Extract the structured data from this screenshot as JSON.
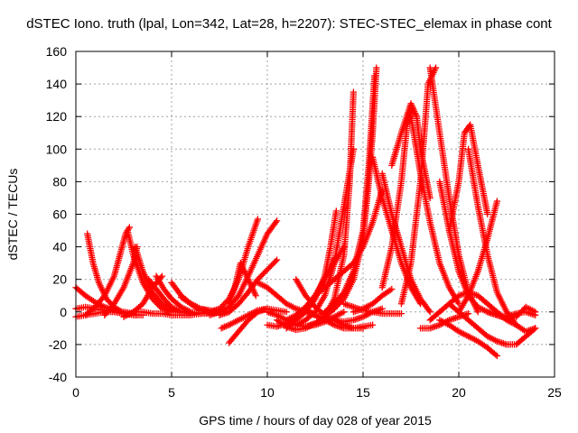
{
  "chart_data": {
    "type": "scatter",
    "title": "dSTEC Iono. truth (lpal, Lon=342, Lat=28, h=2207): STEC-STEC_elemax in phase cont",
    "xlabel": "GPS time / hours of day 028 of year 2015",
    "ylabel": "dSTEC  / TECUs",
    "xlim": [
      0,
      25
    ],
    "ylim": [
      -40,
      160
    ],
    "xticks": [
      0,
      5,
      10,
      15,
      20,
      25
    ],
    "yticks": [
      -40,
      -20,
      0,
      20,
      40,
      60,
      80,
      100,
      120,
      140,
      160
    ],
    "grid": true,
    "marker": "+",
    "color": "#ff0000",
    "series": [
      {
        "x": [
          0.0,
          0.5,
          1.0,
          1.5,
          2.0,
          2.5,
          3.0
        ],
        "y": [
          15,
          10,
          6,
          3,
          1,
          0,
          -1
        ]
      },
      {
        "x": [
          0.0,
          0.5,
          1.0,
          1.5,
          2.0,
          2.5,
          3.0
        ],
        "y": [
          -3,
          -2,
          -1,
          0,
          0,
          -1,
          -1
        ]
      },
      {
        "x": [
          0.0,
          0.5,
          1.0,
          1.5,
          2.0,
          2.5,
          3.0,
          3.5
        ],
        "y": [
          2,
          3,
          2,
          1,
          0,
          -1,
          -2,
          -2
        ]
      },
      {
        "x": [
          0.6,
          0.9,
          1.2,
          1.6,
          2.0,
          2.4,
          2.8,
          3.2
        ],
        "y": [
          48,
          30,
          18,
          8,
          3,
          0,
          -1,
          -2
        ]
      },
      {
        "x": [
          0.5,
          1.0,
          1.5,
          2.0,
          2.3,
          2.6,
          2.8
        ],
        "y": [
          -2,
          3,
          10,
          22,
          35,
          48,
          52
        ]
      },
      {
        "x": [
          2.7,
          3.0,
          3.5,
          4.0,
          4.5,
          5.0
        ],
        "y": [
          50,
          35,
          18,
          8,
          2,
          0
        ]
      },
      {
        "x": [
          1.5,
          2.0,
          2.5,
          3.0,
          3.2
        ],
        "y": [
          -2,
          5,
          15,
          30,
          40
        ]
      },
      {
        "x": [
          3.1,
          3.5,
          4.0,
          4.5,
          5.0,
          5.5,
          6.0
        ],
        "y": [
          40,
          25,
          12,
          5,
          1,
          0,
          -1
        ]
      },
      {
        "x": [
          2.5,
          3.0,
          3.5,
          4.0,
          4.5
        ],
        "y": [
          -3,
          0,
          5,
          15,
          22
        ]
      },
      {
        "x": [
          3.8,
          4.2,
          4.6,
          5.0,
          5.5,
          6.0
        ],
        "y": [
          20,
          14,
          8,
          3,
          0,
          -1
        ]
      },
      {
        "x": [
          4.2,
          4.6,
          5.0,
          5.5,
          6.0,
          6.5
        ],
        "y": [
          22,
          14,
          8,
          3,
          0,
          -1
        ]
      },
      {
        "x": [
          5.0,
          5.5,
          6.0,
          6.5,
          7.0
        ],
        "y": [
          18,
          10,
          5,
          1,
          0
        ]
      },
      {
        "x": [
          5.5,
          6.0,
          6.5,
          7.0,
          7.5
        ],
        "y": [
          9,
          5,
          2,
          0,
          0
        ]
      },
      {
        "x": [
          6.0,
          6.5,
          7.0,
          7.5,
          8.0
        ],
        "y": [
          5,
          2,
          1,
          0,
          0
        ]
      },
      {
        "x": [
          3.0,
          3.5,
          4.0,
          4.5,
          5.0,
          5.5,
          6.0,
          6.5,
          7.0,
          7.5
        ],
        "y": [
          0,
          0,
          -1,
          -1,
          -2,
          -2,
          -2,
          -1,
          -1,
          0
        ]
      },
      {
        "x": [
          6.5,
          7.0,
          7.5,
          8.0,
          8.5,
          9.0,
          9.5
        ],
        "y": [
          -1,
          0,
          2,
          8,
          20,
          40,
          57
        ]
      },
      {
        "x": [
          7.0,
          7.5,
          8.0,
          8.5,
          9.0,
          9.5,
          10.0,
          10.5
        ],
        "y": [
          -2,
          0,
          3,
          10,
          22,
          35,
          48,
          56
        ]
      },
      {
        "x": [
          7.5,
          8.0,
          8.5,
          9.0,
          9.5,
          10.0,
          10.5
        ],
        "y": [
          -2,
          0,
          5,
          12,
          20,
          26,
          32
        ]
      },
      {
        "x": [
          8.0,
          8.3,
          8.6,
          9.0,
          9.4
        ],
        "y": [
          5,
          15,
          30,
          20,
          10
        ]
      },
      {
        "x": [
          7.6,
          8.0,
          8.5,
          9.0,
          9.5,
          10.0,
          10.5,
          11.0
        ],
        "y": [
          -10,
          -8,
          -5,
          -2,
          1,
          2,
          1,
          0
        ]
      },
      {
        "x": [
          8.0,
          8.5,
          9.0,
          9.5,
          10.0
        ],
        "y": [
          -19,
          -12,
          -5,
          0,
          2
        ]
      },
      {
        "x": [
          9.5,
          10.0,
          10.5,
          11.0,
          11.5,
          12.0,
          12.5
        ],
        "y": [
          18,
          15,
          10,
          5,
          2,
          0,
          -2
        ]
      },
      {
        "x": [
          10.0,
          10.5,
          11.0,
          11.5,
          12.0,
          12.5,
          13.0,
          13.5,
          14.0
        ],
        "y": [
          0,
          -2,
          -5,
          -8,
          -9,
          -8,
          -6,
          -3,
          0
        ]
      },
      {
        "x": [
          10.5,
          11.0,
          11.5,
          12.0,
          12.5,
          13.0,
          13.5
        ],
        "y": [
          -5,
          -9,
          -11,
          -10,
          -7,
          -3,
          2
        ]
      },
      {
        "x": [
          10.0,
          10.5,
          11.0,
          11.5,
          12.0,
          12.5,
          13.0,
          13.5
        ],
        "y": [
          -8,
          -9,
          -7,
          -3,
          3,
          10,
          20,
          33
        ]
      },
      {
        "x": [
          11.0,
          11.5,
          12.0,
          12.5,
          13.0,
          13.5,
          14.0
        ],
        "y": [
          -5,
          -2,
          3,
          10,
          20,
          30,
          40
        ]
      },
      {
        "x": [
          11.0,
          11.5,
          12.0,
          12.5,
          13.0,
          13.3,
          13.6
        ],
        "y": [
          -10,
          -5,
          0,
          8,
          22,
          40,
          62
        ]
      },
      {
        "x": [
          11.5,
          12.0,
          12.5,
          13.0,
          13.5,
          14.0,
          14.5
        ],
        "y": [
          -8,
          -5,
          0,
          10,
          30,
          65,
          100
        ]
      },
      {
        "x": [
          12.0,
          12.5,
          13.0,
          13.5,
          14.0,
          14.3,
          14.5
        ],
        "y": [
          -9,
          -7,
          -3,
          8,
          35,
          80,
          135
        ]
      },
      {
        "x": [
          11.5,
          12.0,
          12.5,
          13.0,
          13.5,
          14.0,
          14.5,
          15.0
        ],
        "y": [
          20,
          10,
          3,
          -2,
          -5,
          -8,
          -10,
          -10
        ]
      },
      {
        "x": [
          12.0,
          12.5,
          13.0,
          13.5,
          14.0,
          14.5,
          15.0,
          15.5
        ],
        "y": [
          2,
          -2,
          -5,
          -8,
          -10,
          -10,
          -9,
          -8
        ]
      },
      {
        "x": [
          12.5,
          13.0,
          13.5,
          14.0,
          14.5,
          15.0,
          15.5,
          16.0
        ],
        "y": [
          -2,
          -4,
          -5,
          -6,
          -5,
          -3,
          0,
          2
        ]
      },
      {
        "x": [
          12.5,
          13.0,
          13.5,
          14.0,
          14.5,
          15.0,
          15.5,
          16.0
        ],
        "y": [
          10,
          15,
          20,
          25,
          30,
          40,
          55,
          75
        ]
      },
      {
        "x": [
          13.0,
          13.5,
          14.0,
          14.5,
          15.0,
          15.3,
          15.6
        ],
        "y": [
          0,
          5,
          12,
          25,
          50,
          90,
          145
        ]
      },
      {
        "x": [
          13.5,
          14.0,
          14.5,
          15.0,
          15.3,
          15.5,
          15.7
        ],
        "y": [
          2,
          8,
          20,
          45,
          80,
          110,
          150
        ]
      },
      {
        "x": [
          14.0,
          14.5,
          15.0,
          15.5,
          16.0,
          16.5,
          17.0
        ],
        "y": [
          5,
          3,
          1,
          0,
          -1,
          -1,
          -1
        ]
      },
      {
        "x": [
          14.5,
          15.0,
          15.5,
          16.0,
          16.5
        ],
        "y": [
          0,
          2,
          5,
          10,
          14
        ]
      },
      {
        "x": [
          15.5,
          16.0,
          16.5,
          17.0,
          17.5,
          18.0
        ],
        "y": [
          95,
          70,
          50,
          30,
          15,
          5
        ]
      },
      {
        "x": [
          16.0,
          16.5,
          17.0,
          17.5,
          18.0,
          18.5
        ],
        "y": [
          85,
          60,
          40,
          20,
          8,
          0
        ]
      },
      {
        "x": [
          16.5,
          17.0,
          17.5,
          17.8,
          18.0,
          18.5
        ],
        "y": [
          90,
          110,
          128,
          120,
          100,
          70
        ]
      },
      {
        "x": [
          16.0,
          16.5,
          17.0,
          17.3,
          17.6
        ],
        "y": [
          15,
          40,
          80,
          115,
          125
        ]
      },
      {
        "x": [
          17.5,
          18.0,
          18.5,
          19.0,
          19.5,
          20.0
        ],
        "y": [
          120,
          85,
          55,
          30,
          15,
          5
        ]
      },
      {
        "x": [
          17.0,
          17.5,
          18.0,
          18.4,
          18.8
        ],
        "y": [
          5,
          30,
          80,
          140,
          150
        ]
      },
      {
        "x": [
          18.5,
          19.0,
          19.5,
          20.0,
          20.5,
          21.0
        ],
        "y": [
          150,
          110,
          70,
          35,
          12,
          0
        ]
      },
      {
        "x": [
          18.0,
          18.5,
          19.0,
          19.5,
          20.0,
          20.5
        ],
        "y": [
          -10,
          -10,
          -8,
          -5,
          -3,
          -1
        ]
      },
      {
        "x": [
          18.5,
          19.0,
          19.5,
          20.0,
          20.5,
          21.0,
          21.5,
          22.0,
          22.5,
          23.0
        ],
        "y": [
          -5,
          0,
          5,
          10,
          12,
          10,
          5,
          0,
          -5,
          -8
        ]
      },
      {
        "x": [
          19.0,
          19.5,
          20.0,
          20.5,
          21.0,
          21.5,
          22.0
        ],
        "y": [
          80,
          50,
          25,
          10,
          3,
          0,
          -2
        ]
      },
      {
        "x": [
          19.5,
          20.0,
          20.3,
          20.6,
          21.0,
          21.5
        ],
        "y": [
          50,
          80,
          110,
          115,
          90,
          60
        ]
      },
      {
        "x": [
          20.5,
          21.0,
          21.5,
          22.0,
          22.5,
          23.0,
          23.5,
          24.0
        ],
        "y": [
          100,
          65,
          35,
          12,
          0,
          -8,
          -12,
          -10
        ]
      },
      {
        "x": [
          19.0,
          19.5,
          20.0,
          20.5,
          21.0,
          21.5,
          22.0
        ],
        "y": [
          -5,
          -8,
          -12,
          -15,
          -18,
          -22,
          -27
        ]
      },
      {
        "x": [
          19.5,
          20.0,
          20.5,
          21.0,
          21.5,
          22.0,
          22.5,
          23.0,
          23.5,
          24.0
        ],
        "y": [
          5,
          0,
          -5,
          -10,
          -15,
          -18,
          -20,
          -20,
          -15,
          -10
        ]
      },
      {
        "x": [
          20.0,
          20.5,
          21.0,
          21.5,
          22.0
        ],
        "y": [
          0,
          10,
          25,
          45,
          68
        ]
      },
      {
        "x": [
          21.5,
          22.0,
          22.5,
          23.0,
          23.5,
          24.0
        ],
        "y": [
          0,
          -2,
          -3,
          -1,
          0,
          -2
        ]
      },
      {
        "x": [
          22.0,
          22.5,
          23.0,
          23.5,
          24.0
        ],
        "y": [
          -2,
          -4,
          -3,
          3,
          0
        ]
      }
    ]
  }
}
